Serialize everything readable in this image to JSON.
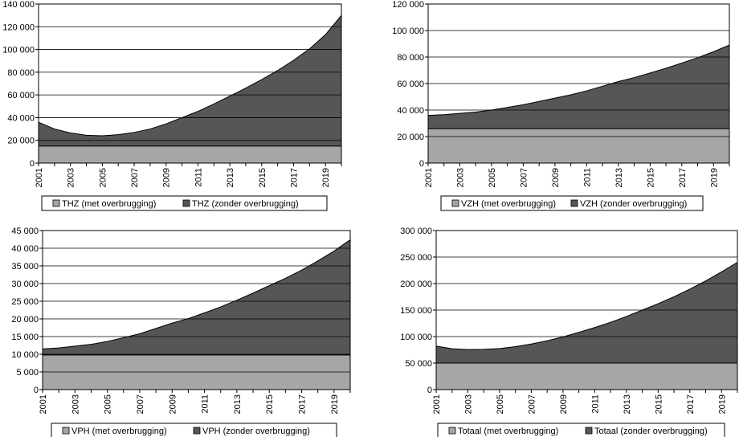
{
  "colors": {
    "lower": "#a6a6a6",
    "upper": "#565656",
    "grid": "#000000",
    "frame": "#000000"
  },
  "chart_data": [
    {
      "type": "area",
      "stacked": true,
      "x": [
        2001,
        2002,
        2003,
        2004,
        2005,
        2006,
        2007,
        2008,
        2009,
        2010,
        2011,
        2012,
        2013,
        2014,
        2015,
        2016,
        2017,
        2018,
        2019,
        2020
      ],
      "x_tick_labels": [
        "2001",
        "2003",
        "2005",
        "2007",
        "2009",
        "2011",
        "2013",
        "2015",
        "2017",
        "2019"
      ],
      "y_tick_labels": [
        "0",
        "20 000",
        "40 000",
        "60 000",
        "80 000",
        "100 000",
        "120 000",
        "140 000"
      ],
      "ylim": [
        0,
        140000
      ],
      "series": [
        {
          "name": "THZ (met overbrugging)",
          "values": [
            15000,
            15000,
            15000,
            15000,
            15000,
            15000,
            15000,
            15000,
            15000,
            15000,
            15000,
            15000,
            15000,
            15000,
            15000,
            15000,
            15000,
            15000,
            15000,
            15000
          ]
        },
        {
          "name": "THZ (zonder overbrugging)",
          "values": [
            21000,
            15000,
            11500,
            9500,
            9000,
            10000,
            12000,
            15000,
            19500,
            25000,
            30500,
            37000,
            44000,
            51000,
            58500,
            66500,
            75500,
            85500,
            98000,
            115000
          ]
        }
      ],
      "legend": "bottom"
    },
    {
      "type": "area",
      "stacked": true,
      "x": [
        2001,
        2002,
        2003,
        2004,
        2005,
        2006,
        2007,
        2008,
        2009,
        2010,
        2011,
        2012,
        2013,
        2014,
        2015,
        2016,
        2017,
        2018,
        2019,
        2020
      ],
      "x_tick_labels": [
        "2001",
        "2003",
        "2005",
        "2007",
        "2009",
        "2011",
        "2013",
        "2015",
        "2017",
        "2019"
      ],
      "y_tick_labels": [
        "0",
        "20 000",
        "40 000",
        "60 000",
        "80 000",
        "100 000",
        "120 000"
      ],
      "ylim": [
        0,
        120000
      ],
      "series": [
        {
          "name": "VZH (met overbrugging)",
          "values": [
            26000,
            26000,
            26000,
            26000,
            26000,
            26000,
            26000,
            26000,
            26000,
            26000,
            26000,
            26000,
            26000,
            26000,
            26000,
            26000,
            26000,
            26000,
            26000,
            26000
          ]
        },
        {
          "name": "VZH (zonder overbrugging)",
          "values": [
            10000,
            10500,
            11500,
            12500,
            14000,
            16000,
            18000,
            20500,
            23000,
            25500,
            28500,
            32000,
            35500,
            38500,
            42000,
            45500,
            49500,
            53500,
            58000,
            63000
          ]
        }
      ],
      "legend": "bottom"
    },
    {
      "type": "area",
      "stacked": true,
      "x": [
        2001,
        2002,
        2003,
        2004,
        2005,
        2006,
        2007,
        2008,
        2009,
        2010,
        2011,
        2012,
        2013,
        2014,
        2015,
        2016,
        2017,
        2018,
        2019,
        2020
      ],
      "x_tick_labels": [
        "2001",
        "2003",
        "2005",
        "2007",
        "2009",
        "2011",
        "2013",
        "2015",
        "2017",
        "2019"
      ],
      "y_tick_labels": [
        "0",
        "5 000",
        "10 000",
        "15 000",
        "20 000",
        "25 000",
        "30 000",
        "35 000",
        "40 000",
        "45 000"
      ],
      "ylim": [
        0,
        45000
      ],
      "series": [
        {
          "name": "VPH (met overbrugging)",
          "values": [
            9800,
            9800,
            9800,
            9800,
            9800,
            9800,
            9800,
            9800,
            9800,
            9800,
            9800,
            9800,
            9800,
            9800,
            9800,
            9800,
            9800,
            9800,
            9800,
            9800
          ]
        },
        {
          "name": "VPH (zonder overbrugging)",
          "values": [
            1700,
            2000,
            2500,
            3000,
            3800,
            4900,
            6000,
            7500,
            9000,
            10300,
            11900,
            13600,
            15500,
            17500,
            19600,
            21700,
            24000,
            26600,
            29400,
            32600
          ]
        }
      ],
      "legend": "bottom"
    },
    {
      "type": "area",
      "stacked": true,
      "x": [
        2001,
        2002,
        2003,
        2004,
        2005,
        2006,
        2007,
        2008,
        2009,
        2010,
        2011,
        2012,
        2013,
        2014,
        2015,
        2016,
        2017,
        2018,
        2019,
        2020
      ],
      "x_tick_labels": [
        "2001",
        "2003",
        "2005",
        "2007",
        "2009",
        "2011",
        "2013",
        "2015",
        "2017",
        "2019"
      ],
      "y_tick_labels": [
        "0",
        "50 000",
        "100 000",
        "150 000",
        "200 000",
        "250 000",
        "300 000"
      ],
      "ylim": [
        0,
        300000
      ],
      "series": [
        {
          "name": "Totaal (met overbrugging)",
          "values": [
            50000,
            50000,
            50000,
            50000,
            50000,
            50000,
            50000,
            50000,
            50000,
            50000,
            50000,
            50000,
            50000,
            50000,
            50000,
            50000,
            50000,
            50000,
            50000,
            50000
          ]
        },
        {
          "name": "Totaal (zonder overbrugging)",
          "values": [
            32000,
            27000,
            25500,
            26000,
            27500,
            31000,
            36000,
            42000,
            49500,
            58000,
            67000,
            77000,
            88000,
            100000,
            112000,
            125000,
            139500,
            155000,
            172000,
            190000
          ]
        }
      ],
      "legend": "bottom"
    }
  ]
}
